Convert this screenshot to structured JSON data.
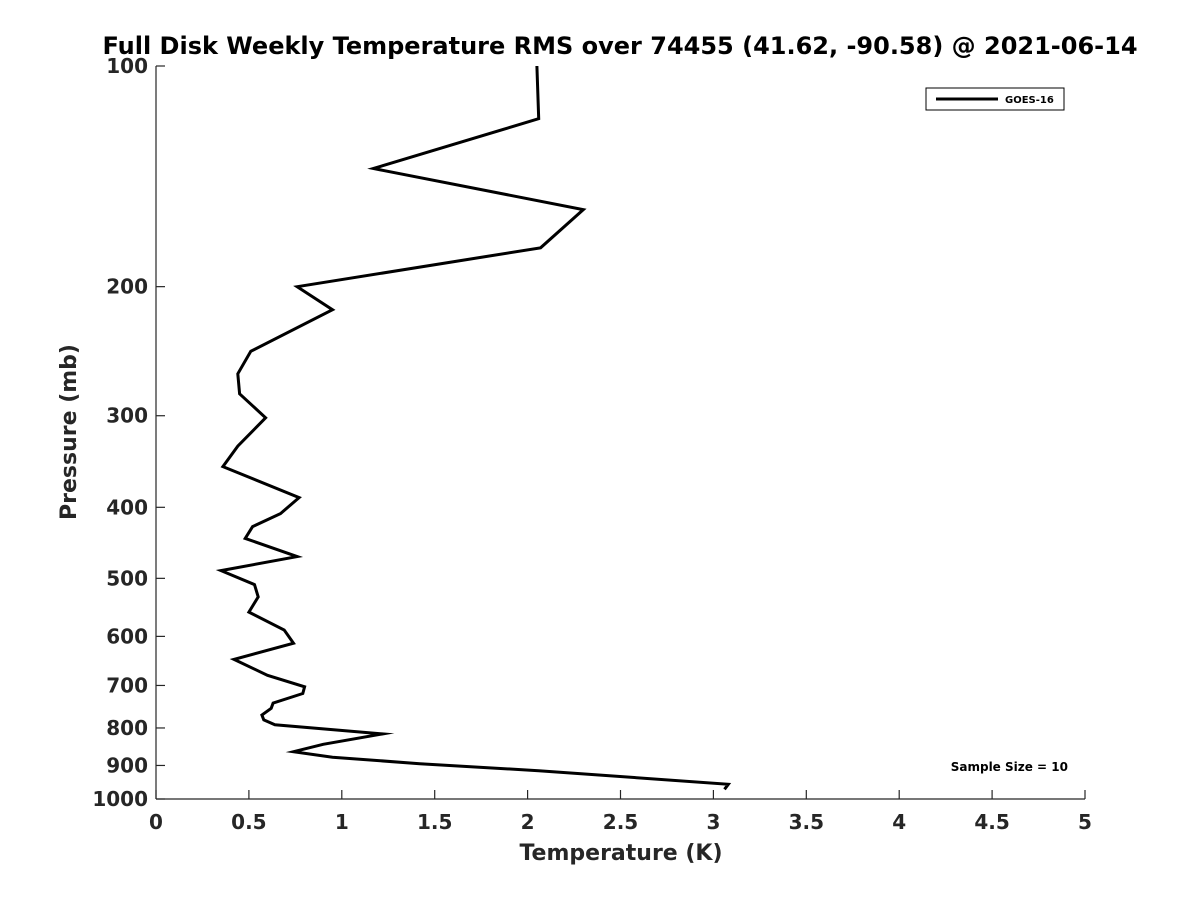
{
  "chart_data": {
    "type": "line",
    "title": "Full Disk Weekly Temperature RMS over 74455 (41.62, -90.58) @ 2021-06-14",
    "xlabel": "Temperature (K)",
    "ylabel": "Pressure (mb)",
    "xlim": [
      0,
      5
    ],
    "ylim": [
      100,
      1000
    ],
    "y_scale": "log",
    "y_reversed": true,
    "x_ticks": [
      "0",
      "0.5",
      "1",
      "1.5",
      "2",
      "2.5",
      "3",
      "3.5",
      "4",
      "4.5",
      "5"
    ],
    "y_ticks": [
      "100",
      "200",
      "300",
      "400",
      "500",
      "600",
      "700",
      "800",
      "900",
      "1000"
    ],
    "grid": false,
    "legend_position": "top-right",
    "annotation": "Sample Size = 10",
    "series": [
      {
        "name": "GOES-16",
        "color": "#000000",
        "x": [
          2.05,
          2.06,
          1.17,
          2.3,
          2.07,
          0.76,
          0.95,
          0.51,
          0.44,
          0.45,
          0.59,
          0.44,
          0.36,
          0.77,
          0.67,
          0.52,
          0.48,
          0.76,
          0.35,
          0.53,
          0.55,
          0.5,
          0.69,
          0.74,
          0.42,
          0.6,
          0.8,
          0.79,
          0.63,
          0.62,
          0.57,
          0.58,
          0.64,
          1.22,
          0.9,
          0.74,
          0.95,
          1.42,
          2.06,
          3.08,
          3.06
        ],
        "y": [
          100,
          118,
          138,
          157,
          177,
          200,
          215,
          245,
          263,
          280,
          302,
          330,
          352,
          388,
          408,
          425,
          441,
          467,
          488,
          510,
          530,
          556,
          588,
          613,
          645,
          678,
          703,
          718,
          740,
          752,
          768,
          780,
          792,
          815,
          842,
          862,
          877,
          895,
          915,
          955,
          970
        ]
      }
    ]
  }
}
